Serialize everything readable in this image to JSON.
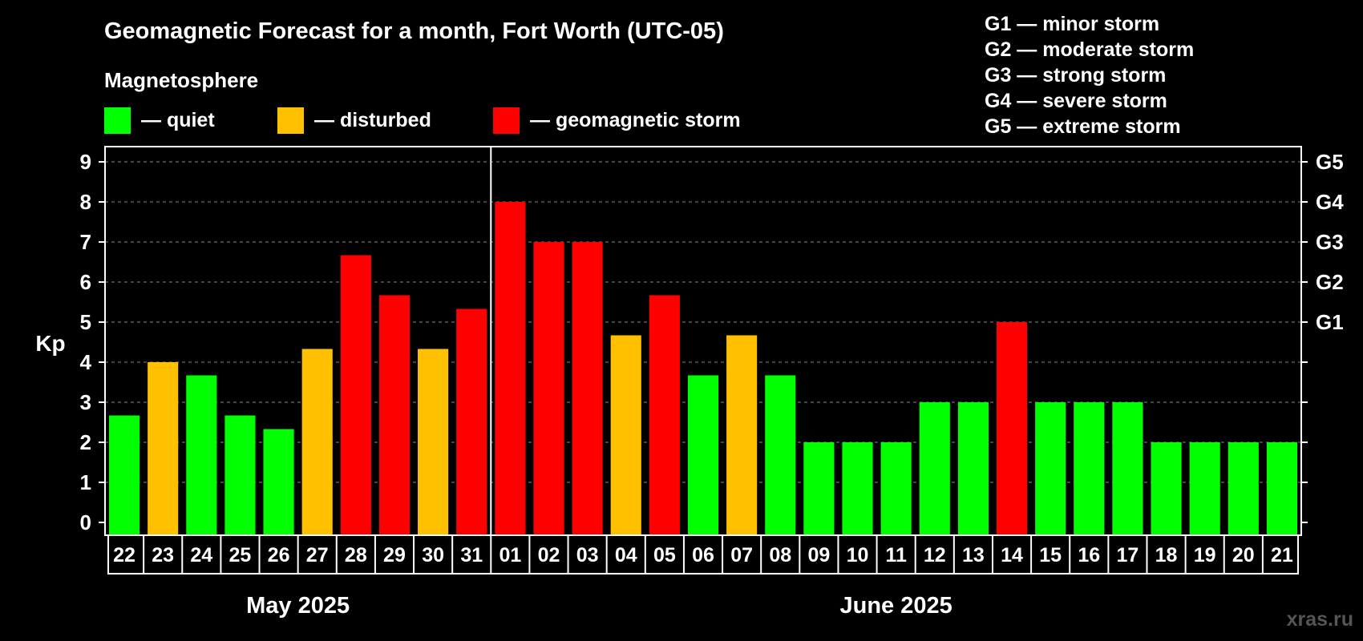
{
  "chart_data": {
    "type": "bar",
    "title": "Geomagnetic Forecast for a month, Fort Worth (UTC-05)",
    "legend_title": "Magnetosphere",
    "legend": [
      {
        "label": "— quiet",
        "color": "#00ff00"
      },
      {
        "label": "— disturbed",
        "color": "#ffc000"
      },
      {
        "label": "— geomagnetic storm",
        "color": "#ff0000"
      }
    ],
    "storm_legend": [
      "G1 — minor storm",
      "G2 — moderate storm",
      "G3 — strong storm",
      "G4 — severe storm",
      "G5 — extreme storm"
    ],
    "ylabel": "Kp",
    "ylim": [
      0,
      9
    ],
    "yticks": [
      "0",
      "1",
      "2",
      "3",
      "4",
      "5",
      "6",
      "7",
      "8",
      "9"
    ],
    "g_scale": [
      {
        "label": "G1",
        "kp": 5
      },
      {
        "label": "G2",
        "kp": 6
      },
      {
        "label": "G3",
        "kp": 7
      },
      {
        "label": "G4",
        "kp": 8
      },
      {
        "label": "G5",
        "kp": 9
      }
    ],
    "grid": true,
    "categories": [
      "22",
      "23",
      "24",
      "25",
      "26",
      "27",
      "28",
      "29",
      "30",
      "31",
      "01",
      "02",
      "03",
      "04",
      "05",
      "06",
      "07",
      "08",
      "09",
      "10",
      "11",
      "12",
      "13",
      "14",
      "15",
      "16",
      "17",
      "18",
      "19",
      "20",
      "21"
    ],
    "values": [
      2.67,
      4,
      3.67,
      2.67,
      2.33,
      4.33,
      6.67,
      5.67,
      4.33,
      5.33,
      8,
      7,
      7,
      4.67,
      5.67,
      3.67,
      4.67,
      3.67,
      2,
      2,
      2,
      3,
      3,
      5,
      3,
      3,
      3,
      2,
      2,
      2,
      2
    ],
    "levels": [
      "quiet",
      "disturbed",
      "quiet",
      "quiet",
      "quiet",
      "disturbed",
      "storm",
      "storm",
      "disturbed",
      "storm",
      "storm",
      "storm",
      "storm",
      "disturbed",
      "storm",
      "quiet",
      "disturbed",
      "quiet",
      "quiet",
      "quiet",
      "quiet",
      "quiet",
      "quiet",
      "storm",
      "quiet",
      "quiet",
      "quiet",
      "quiet",
      "quiet",
      "quiet",
      "quiet"
    ],
    "colors": {
      "quiet": "#00ff00",
      "disturbed": "#ffc000",
      "storm": "#ff0000"
    },
    "months": [
      {
        "label": "May 2025",
        "start": 0,
        "end": 9
      },
      {
        "label": "June 2025",
        "start": 10,
        "end": 30
      }
    ],
    "watermark": "xras.ru"
  }
}
